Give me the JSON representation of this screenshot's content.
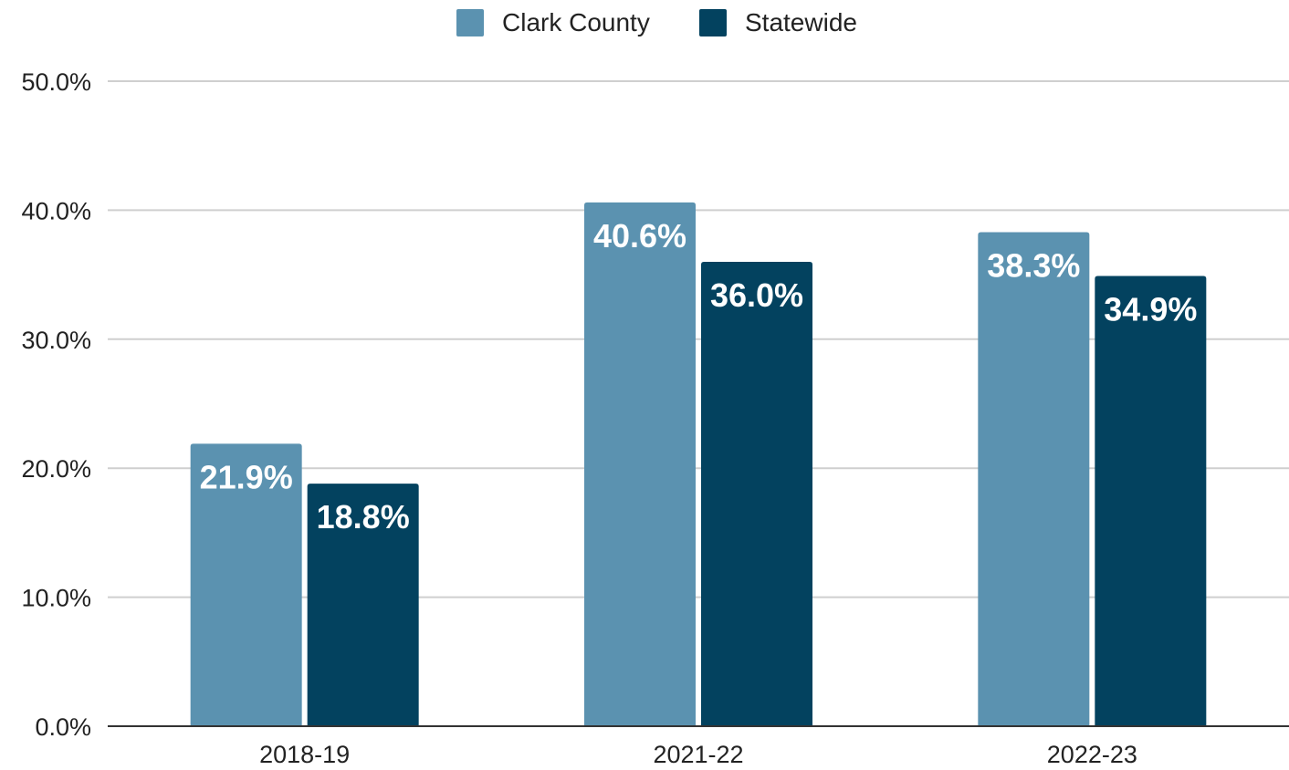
{
  "chart_data": {
    "type": "bar",
    "title": "",
    "xlabel": "",
    "ylabel": "",
    "categories": [
      "2018-19",
      "2021-22",
      "2022-23"
    ],
    "series": [
      {
        "name": "Clark County",
        "color": "#5b92b0",
        "values": [
          21.9,
          40.6,
          38.3
        ],
        "labels": [
          "21.9%",
          "40.6%",
          "38.3%"
        ]
      },
      {
        "name": "Statewide",
        "color": "#03425f",
        "values": [
          18.8,
          36.0,
          34.9
        ],
        "labels": [
          "18.8%",
          "36.0%",
          "34.9%"
        ]
      }
    ],
    "ylim": [
      0,
      50
    ],
    "yticks": [
      0,
      10,
      20,
      30,
      40,
      50
    ],
    "ytick_labels": [
      "0.0%",
      "10.0%",
      "20.0%",
      "30.0%",
      "40.0%",
      "50.0%"
    ],
    "grid": true,
    "legend_position": "top-center"
  }
}
